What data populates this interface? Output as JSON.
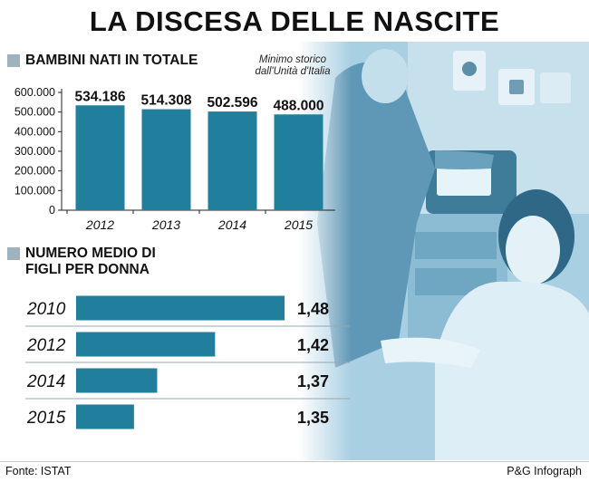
{
  "title": "LA DISCESA DELLE NASCITE",
  "colors": {
    "bar": "#1f7f9c",
    "marker": "#9fb3bf",
    "photo_tint": "#7fb6d1"
  },
  "chart_data": [
    {
      "type": "bar",
      "title": "BAMBINI NATI IN TOTALE",
      "categories": [
        "2012",
        "2013",
        "2014",
        "2015"
      ],
      "values": [
        534186,
        514308,
        502596,
        488000
      ],
      "value_labels": [
        "534.186",
        "514.308",
        "502.596",
        "488.000"
      ],
      "ytick_values": [
        0,
        100000,
        200000,
        300000,
        400000,
        500000,
        600000
      ],
      "ytick_labels": [
        "0",
        "100.000",
        "200.000",
        "300.000",
        "400.000",
        "500.000",
        "600.000"
      ],
      "ylim": [
        0,
        600000
      ],
      "xlabel": "",
      "ylabel": "",
      "annotation": "Minimo storico dall'Unità d'Italia",
      "grid": false
    },
    {
      "type": "bar",
      "orientation": "horizontal",
      "title": "NUMERO MEDIO DI FIGLI PER DONNA",
      "categories": [
        "2010",
        "2012",
        "2014",
        "2015"
      ],
      "values": [
        1.48,
        1.42,
        1.37,
        1.35
      ],
      "value_labels": [
        "1,48",
        "1,42",
        "1,37",
        "1,35"
      ],
      "grid": false
    }
  ],
  "footer": {
    "source": "Fonte: ISTAT",
    "credit": "P&G Infograph"
  }
}
